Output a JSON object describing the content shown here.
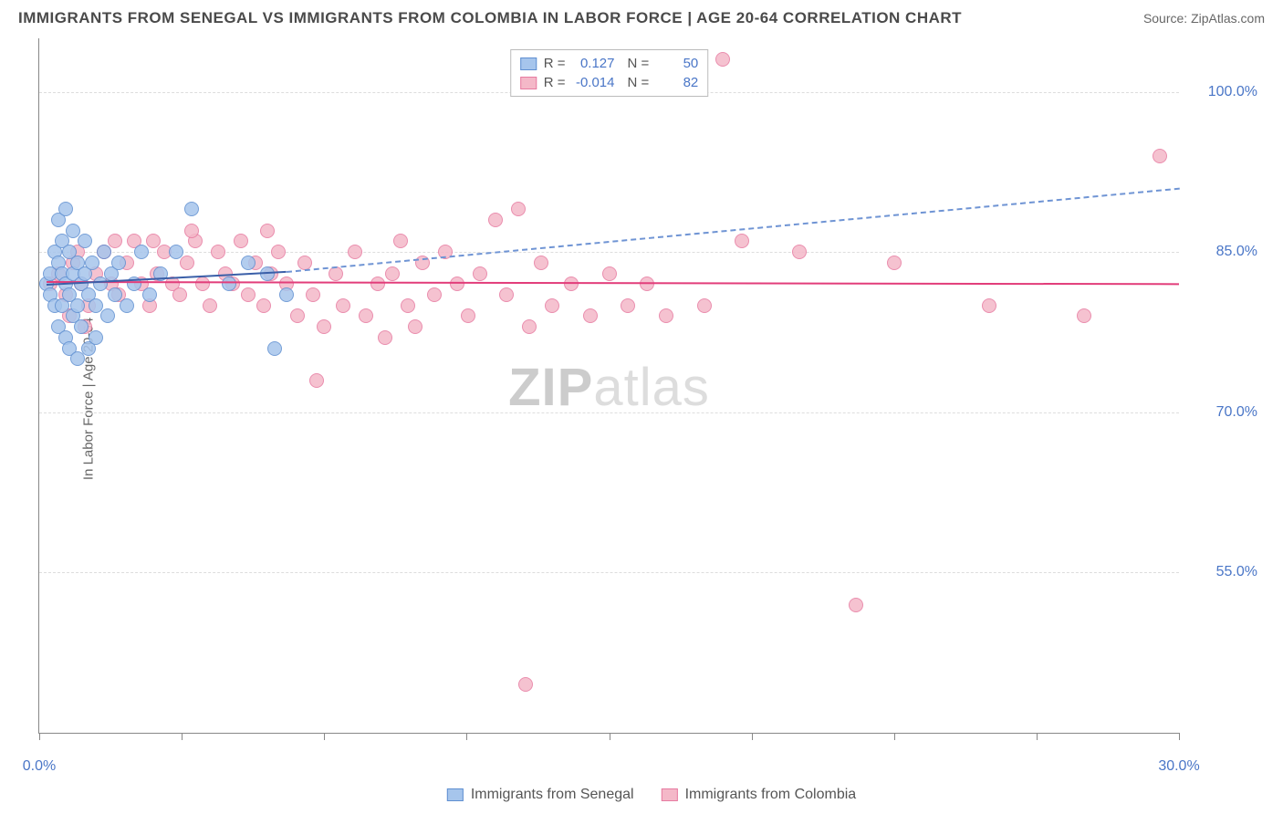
{
  "header": {
    "title": "IMMIGRANTS FROM SENEGAL VS IMMIGRANTS FROM COLOMBIA IN LABOR FORCE | AGE 20-64 CORRELATION CHART",
    "source": "Source: ZipAtlas.com"
  },
  "chart": {
    "type": "scatter",
    "ylabel": "In Labor Force | Age 20-64",
    "xlim": [
      0,
      30
    ],
    "ylim": [
      40,
      105
    ],
    "xticks": [
      0,
      3.75,
      7.5,
      11.25,
      15,
      18.75,
      22.5,
      26.25,
      30
    ],
    "xtick_labels": {
      "0": "0.0%",
      "30": "30.0%"
    },
    "yticks": [
      55,
      70,
      85,
      100
    ],
    "ytick_labels": {
      "55": "55.0%",
      "70": "70.0%",
      "85": "85.0%",
      "100": "100.0%"
    },
    "grid_color": "#dddddd",
    "axis_color": "#888888",
    "background_color": "#ffffff",
    "watermark": {
      "text_a": "ZIP",
      "text_b": "atlas"
    }
  },
  "series": {
    "senegal": {
      "label": "Immigrants from Senegal",
      "fill": "#a6c5ec",
      "stroke": "#5f8fd1",
      "line_color": "#3a5fa8",
      "dash_color": "#6f94d4",
      "R": "0.127",
      "N": "50",
      "points": [
        [
          0.2,
          82
        ],
        [
          0.3,
          83
        ],
        [
          0.3,
          81
        ],
        [
          0.4,
          85
        ],
        [
          0.4,
          80
        ],
        [
          0.5,
          88
        ],
        [
          0.5,
          84
        ],
        [
          0.5,
          78
        ],
        [
          0.6,
          86
        ],
        [
          0.6,
          83
        ],
        [
          0.6,
          80
        ],
        [
          0.7,
          89
        ],
        [
          0.7,
          82
        ],
        [
          0.7,
          77
        ],
        [
          0.8,
          85
        ],
        [
          0.8,
          81
        ],
        [
          0.8,
          76
        ],
        [
          0.9,
          87
        ],
        [
          0.9,
          83
        ],
        [
          0.9,
          79
        ],
        [
          1.0,
          84
        ],
        [
          1.0,
          80
        ],
        [
          1.0,
          75
        ],
        [
          1.1,
          82
        ],
        [
          1.1,
          78
        ],
        [
          1.2,
          86
        ],
        [
          1.2,
          83
        ],
        [
          1.3,
          81
        ],
        [
          1.3,
          76
        ],
        [
          1.4,
          84
        ],
        [
          1.5,
          80
        ],
        [
          1.5,
          77
        ],
        [
          1.6,
          82
        ],
        [
          1.7,
          85
        ],
        [
          1.8,
          79
        ],
        [
          1.9,
          83
        ],
        [
          2.0,
          81
        ],
        [
          2.1,
          84
        ],
        [
          2.3,
          80
        ],
        [
          2.5,
          82
        ],
        [
          2.7,
          85
        ],
        [
          2.9,
          81
        ],
        [
          3.2,
          83
        ],
        [
          3.6,
          85
        ],
        [
          4.0,
          89
        ],
        [
          5.0,
          82
        ],
        [
          5.5,
          84
        ],
        [
          6.2,
          76
        ],
        [
          6.0,
          83
        ],
        [
          6.5,
          81
        ]
      ],
      "fit_solid": {
        "x1": 0.2,
        "y1": 82.0,
        "x2": 6.5,
        "y2": 83.2
      },
      "fit_dash": {
        "x1": 6.5,
        "y1": 83.2,
        "x2": 30,
        "y2": 91.0
      }
    },
    "colombia": {
      "label": "Immigrants from Colombia",
      "fill": "#f4b8c8",
      "stroke": "#e77ba1",
      "line_color": "#e23d7a",
      "R": "-0.014",
      "N": "82",
      "points": [
        [
          0.3,
          82
        ],
        [
          0.5,
          83
        ],
        [
          0.7,
          81
        ],
        [
          0.9,
          84
        ],
        [
          1.1,
          82
        ],
        [
          1.3,
          80
        ],
        [
          1.5,
          83
        ],
        [
          1.7,
          85
        ],
        [
          1.9,
          82
        ],
        [
          2.1,
          81
        ],
        [
          2.3,
          84
        ],
        [
          2.5,
          86
        ],
        [
          2.7,
          82
        ],
        [
          2.9,
          80
        ],
        [
          3.1,
          83
        ],
        [
          3.3,
          85
        ],
        [
          3.5,
          82
        ],
        [
          3.7,
          81
        ],
        [
          3.9,
          84
        ],
        [
          4.1,
          86
        ],
        [
          4.3,
          82
        ],
        [
          4.5,
          80
        ],
        [
          4.7,
          85
        ],
        [
          4.9,
          83
        ],
        [
          5.1,
          82
        ],
        [
          5.3,
          86
        ],
        [
          5.5,
          81
        ],
        [
          5.7,
          84
        ],
        [
          5.9,
          80
        ],
        [
          6.1,
          83
        ],
        [
          6.3,
          85
        ],
        [
          6.5,
          82
        ],
        [
          6.8,
          79
        ],
        [
          7.0,
          84
        ],
        [
          7.2,
          81
        ],
        [
          7.5,
          78
        ],
        [
          7.8,
          83
        ],
        [
          8.0,
          80
        ],
        [
          8.3,
          85
        ],
        [
          8.6,
          79
        ],
        [
          8.9,
          82
        ],
        [
          9.1,
          77
        ],
        [
          9.3,
          83
        ],
        [
          9.5,
          86
        ],
        [
          9.7,
          80
        ],
        [
          9.9,
          78
        ],
        [
          10.1,
          84
        ],
        [
          10.4,
          81
        ],
        [
          10.7,
          85
        ],
        [
          11.0,
          82
        ],
        [
          11.3,
          79
        ],
        [
          11.6,
          83
        ],
        [
          12.0,
          88
        ],
        [
          12.3,
          81
        ],
        [
          12.6,
          89
        ],
        [
          12.9,
          78
        ],
        [
          13.2,
          84
        ],
        [
          13.5,
          80
        ],
        [
          14.0,
          82
        ],
        [
          14.5,
          79
        ],
        [
          15.0,
          83
        ],
        [
          15.5,
          80
        ],
        [
          16.0,
          82
        ],
        [
          16.5,
          79
        ],
        [
          17.5,
          80
        ],
        [
          18.0,
          103
        ],
        [
          18.5,
          86
        ],
        [
          20.0,
          85
        ],
        [
          21.5,
          52
        ],
        [
          22.5,
          84
        ],
        [
          25.0,
          80
        ],
        [
          27.5,
          79
        ],
        [
          29.5,
          94
        ],
        [
          7.3,
          73
        ],
        [
          12.8,
          44.5
        ],
        [
          6.0,
          87
        ],
        [
          4.0,
          87
        ],
        [
          3.0,
          86
        ],
        [
          2.0,
          86
        ],
        [
          1.0,
          85
        ],
        [
          0.8,
          79
        ],
        [
          1.2,
          78
        ]
      ],
      "fit_solid": {
        "x1": 0.2,
        "y1": 82.3,
        "x2": 30,
        "y2": 82.1
      }
    }
  },
  "legend_bottom": [
    {
      "key": "senegal"
    },
    {
      "key": "colombia"
    }
  ]
}
